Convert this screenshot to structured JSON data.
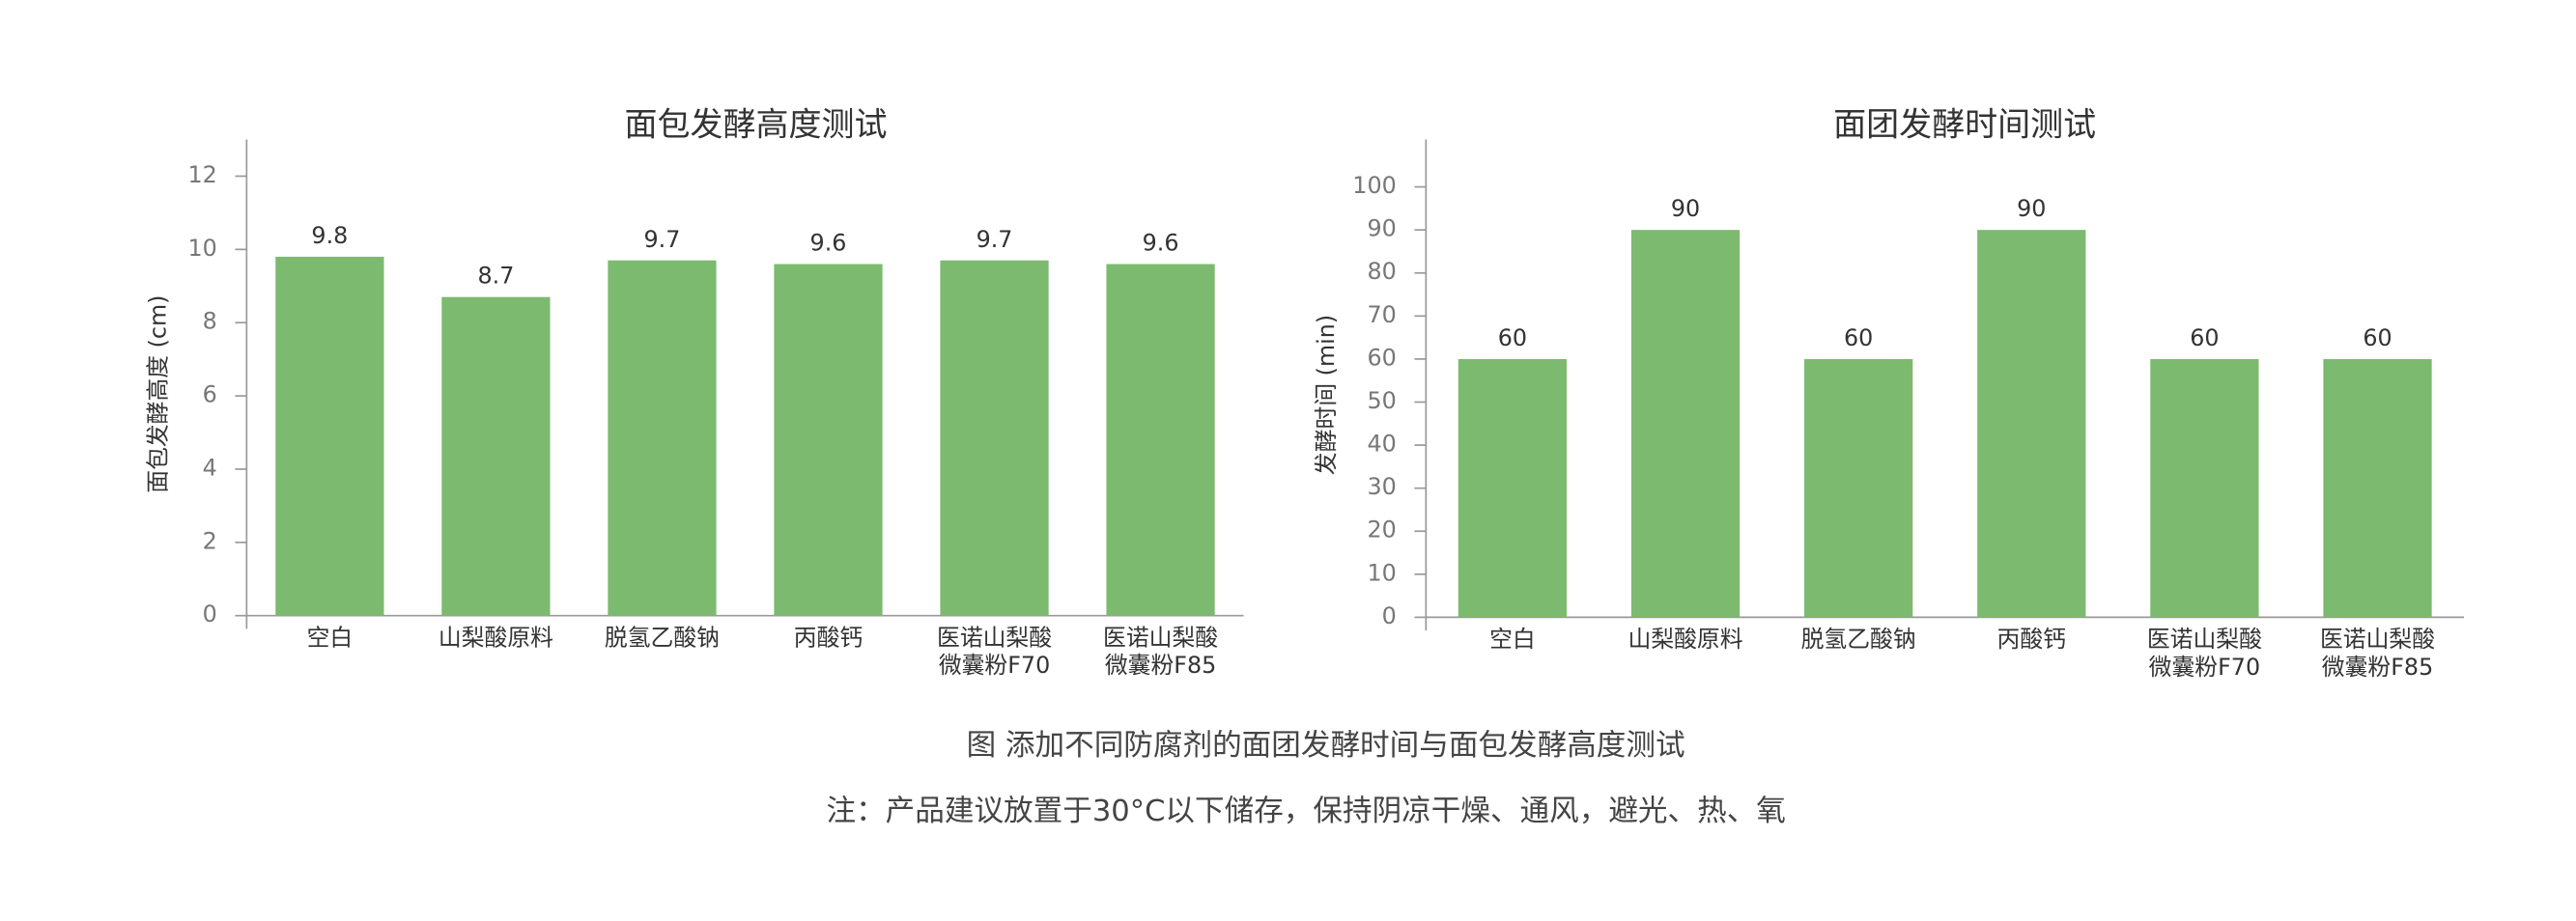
{
  "chart_data": [
    {
      "type": "bar",
      "title": "面包发酵高度测试",
      "y_label": "面包发酵高度 (cm)",
      "categories": [
        "空白",
        "山梨酸原料",
        "脱氢乙酸钠",
        "丙酸钙",
        "医诺山梨酸微囊粉F70",
        "医诺山梨酸微囊粉F85"
      ],
      "values": [
        9.8,
        8.7,
        9.7,
        9.6,
        9.7,
        9.6
      ],
      "color": "#7cba6f",
      "ylim": [
        0,
        13
      ],
      "yticks": [
        0,
        2,
        4,
        6,
        8,
        10,
        12
      ],
      "grid": false
    },
    {
      "type": "bar",
      "title": "面团发酵时间测试",
      "y_label": "发酵时间 (min)",
      "categories": [
        "空白",
        "山梨酸原料",
        "脱氢乙酸钠",
        "丙酸钙",
        "医诺山梨酸微囊粉F70",
        "医诺山梨酸微囊粉F85"
      ],
      "values": [
        60,
        90,
        60,
        90,
        60,
        60
      ],
      "color": "#7cba6f",
      "ylim": [
        0,
        111
      ],
      "yticks": [
        0,
        10,
        20,
        30,
        40,
        50,
        60,
        70,
        80,
        90,
        100
      ],
      "grid": false
    }
  ],
  "figure_caption": "图 添加不同防腐剂的面团发酵时间与面包发酵高度测试",
  "note": "注：产品建议放置于30°C以下储存，保持阴凉干燥、通风，避光、热、氧"
}
